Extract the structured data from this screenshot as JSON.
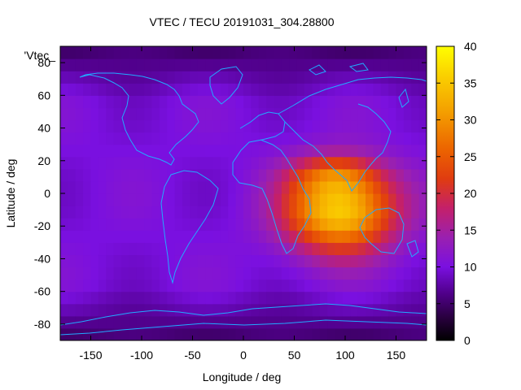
{
  "chart_data": {
    "type": "heatmap",
    "title": "VTEC / TECU 20191031_304.28800",
    "xlabel": "Longitude / deg",
    "ylabel": "Latitude / deg",
    "legend_label": "'Vtec_",
    "xlim": [
      -180,
      180
    ],
    "ylim": [
      -90,
      90
    ],
    "x_ticks": [
      -150,
      -100,
      -50,
      0,
      50,
      100,
      150
    ],
    "y_ticks": [
      -80,
      -60,
      -40,
      -20,
      0,
      20,
      40,
      60,
      80
    ],
    "colorbar": {
      "range": [
        0,
        40
      ],
      "ticks": [
        0,
        5,
        10,
        15,
        20,
        25,
        30,
        35,
        40
      ],
      "colormap": [
        "#000000",
        "#3a0050",
        "#6a10c8",
        "#8a1ad0",
        "#c0206a",
        "#e63c00",
        "#f07a00",
        "#f6b000",
        "#ffff00"
      ]
    },
    "grid": false,
    "field": {
      "description": "Vertical total electron content map; peak near lon 80..110, lat -15..-5",
      "peak_value": 36,
      "peak_lon": 95,
      "peak_lat": -10,
      "background_value": 10,
      "polar_min_value": 5
    }
  }
}
